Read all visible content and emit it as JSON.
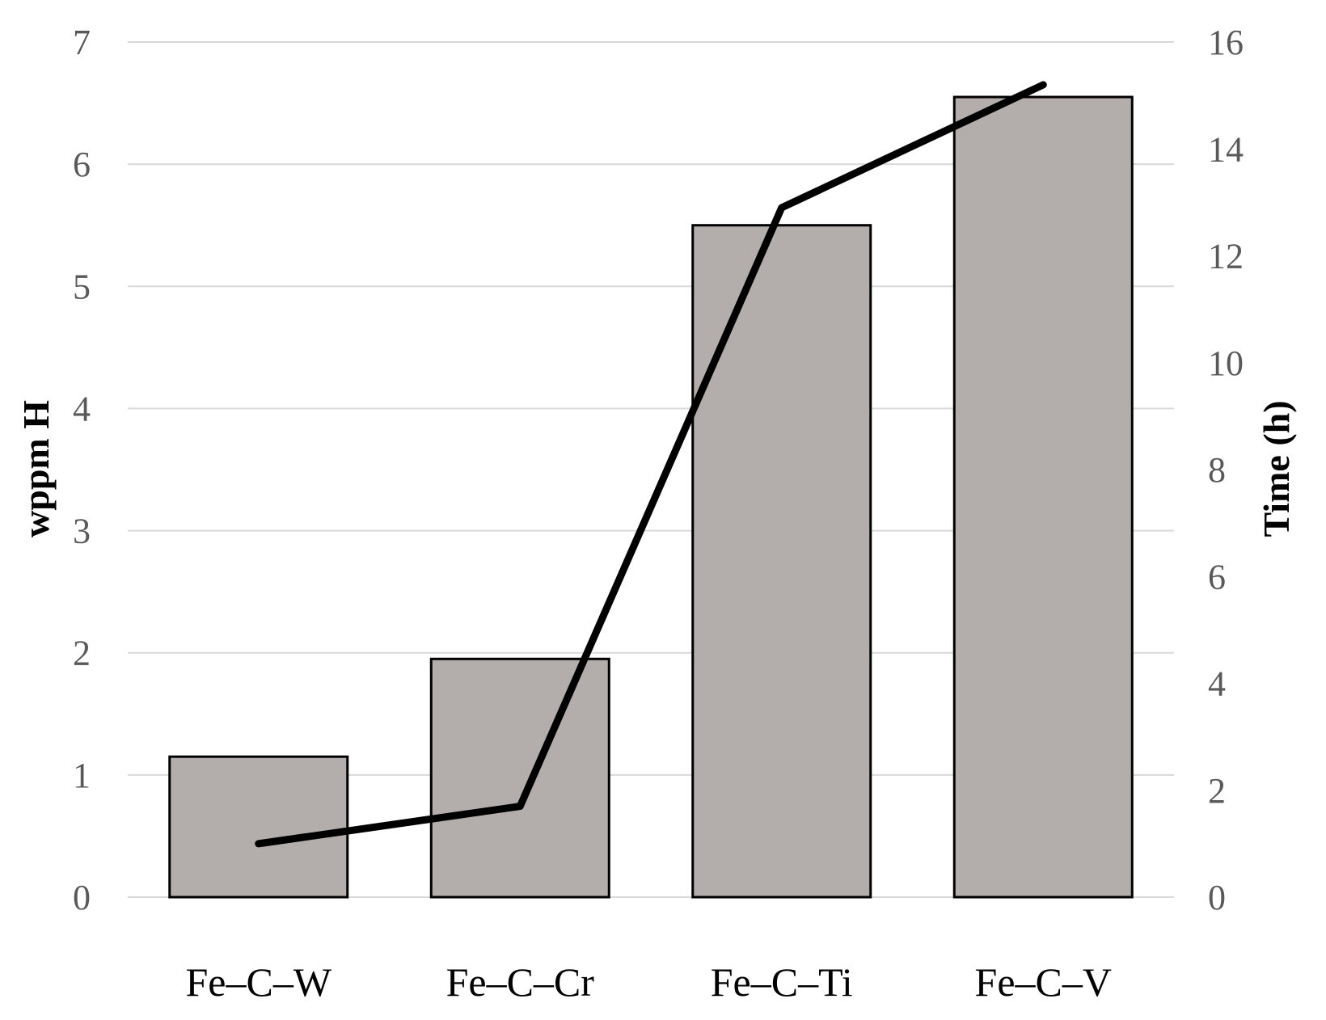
{
  "chart_data": {
    "type": "bar",
    "categories": [
      "Fe–C–W",
      "Fe–C–Cr",
      "Fe–C–Ti",
      "Fe–C–V"
    ],
    "series": [
      {
        "type": "bar",
        "axis": "left",
        "values": [
          1.15,
          1.95,
          5.5,
          6.55
        ]
      },
      {
        "type": "line",
        "axis": "right",
        "values": [
          1.0,
          1.7,
          12.9,
          15.2
        ]
      }
    ],
    "ylabel": "wppm H",
    "y2label": "Time (h)",
    "ylim": [
      0,
      7
    ],
    "y2lim": [
      0,
      16
    ],
    "yticks": [
      "0",
      "1",
      "2",
      "3",
      "4",
      "5",
      "6",
      "7"
    ],
    "y2ticks": [
      "0",
      "2",
      "4",
      "6",
      "8",
      "10",
      "12",
      "14",
      "16"
    ],
    "grid": true,
    "colors": {
      "bar_fill": "#b3aeab",
      "bar_stroke": "#000000",
      "line": "#000000",
      "grid": "#d9d9d9"
    }
  }
}
